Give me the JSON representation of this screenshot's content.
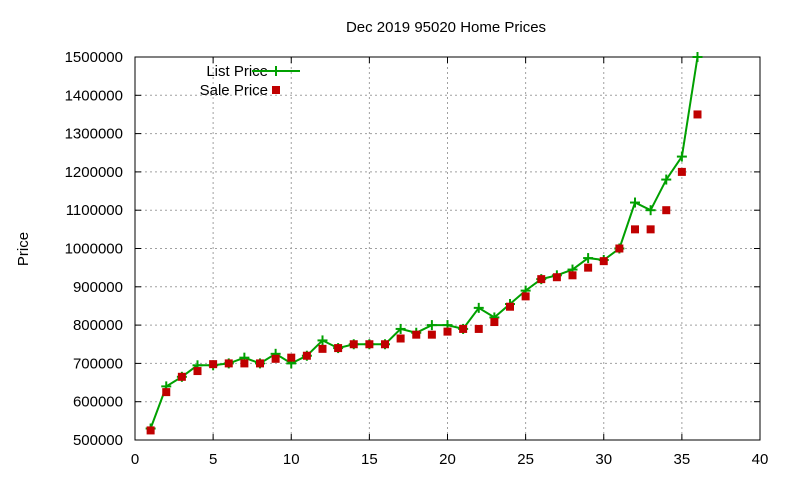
{
  "chart_data": {
    "type": "line",
    "title": "Dec 2019 95020 Home Prices",
    "xlabel": "",
    "ylabel": "Price",
    "xlim": [
      0,
      40
    ],
    "ylim": [
      500000,
      1500000
    ],
    "xticks": [
      0,
      5,
      10,
      15,
      20,
      25,
      30,
      35,
      40
    ],
    "yticks": [
      500000,
      600000,
      700000,
      800000,
      900000,
      1000000,
      1100000,
      1200000,
      1300000,
      1400000,
      1500000
    ],
    "grid": true,
    "legend_position": "top-left",
    "series": [
      {
        "name": "List Price",
        "style": "line-with-plus-markers",
        "color": "#00a000",
        "points": [
          [
            1,
            530000
          ],
          [
            2,
            640000
          ],
          [
            3,
            665000
          ],
          [
            4,
            695000
          ],
          [
            5,
            695000
          ],
          [
            6,
            700000
          ],
          [
            7,
            715000
          ],
          [
            8,
            700000
          ],
          [
            9,
            725000
          ],
          [
            10,
            700000
          ],
          [
            11,
            720000
          ],
          [
            12,
            760000
          ],
          [
            13,
            740000
          ],
          [
            14,
            750000
          ],
          [
            15,
            750000
          ],
          [
            16,
            750000
          ],
          [
            17,
            790000
          ],
          [
            18,
            780000
          ],
          [
            19,
            800000
          ],
          [
            20,
            800000
          ],
          [
            21,
            790000
          ],
          [
            22,
            845000
          ],
          [
            23,
            820000
          ],
          [
            24,
            855000
          ],
          [
            25,
            890000
          ],
          [
            26,
            920000
          ],
          [
            27,
            930000
          ],
          [
            28,
            945000
          ],
          [
            29,
            975000
          ],
          [
            30,
            970000
          ],
          [
            31,
            1000000
          ],
          [
            32,
            1120000
          ],
          [
            33,
            1100000
          ],
          [
            34,
            1180000
          ],
          [
            35,
            1240000
          ],
          [
            36,
            1500000
          ]
        ]
      },
      {
        "name": "Sale Price",
        "style": "square-markers",
        "color": "#c00000",
        "points": [
          [
            1,
            525000
          ],
          [
            2,
            625000
          ],
          [
            3,
            665000
          ],
          [
            4,
            680000
          ],
          [
            5,
            698000
          ],
          [
            6,
            700000
          ],
          [
            7,
            700000
          ],
          [
            8,
            700000
          ],
          [
            9,
            712000
          ],
          [
            10,
            715000
          ],
          [
            11,
            720000
          ],
          [
            12,
            738000
          ],
          [
            13,
            740000
          ],
          [
            14,
            750000
          ],
          [
            15,
            750000
          ],
          [
            16,
            750000
          ],
          [
            17,
            765000
          ],
          [
            18,
            775000
          ],
          [
            19,
            775000
          ],
          [
            20,
            783000
          ],
          [
            21,
            790000
          ],
          [
            22,
            790000
          ],
          [
            23,
            808000
          ],
          [
            24,
            848000
          ],
          [
            25,
            875000
          ],
          [
            26,
            920000
          ],
          [
            27,
            925000
          ],
          [
            28,
            930000
          ],
          [
            29,
            950000
          ],
          [
            30,
            967000
          ],
          [
            31,
            1000000
          ],
          [
            32,
            1050000
          ],
          [
            33,
            1050000
          ],
          [
            34,
            1100000
          ],
          [
            35,
            1200000
          ],
          [
            36,
            1350000
          ]
        ]
      }
    ]
  }
}
